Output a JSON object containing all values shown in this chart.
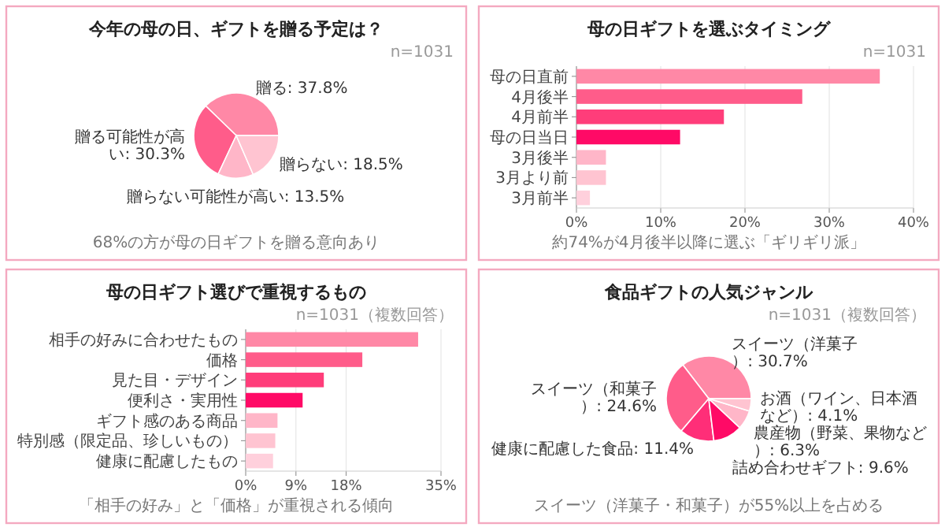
{
  "chart_data": [
    {
      "type": "pie",
      "title": "今年の母の日、ギフトを贈る予定は？",
      "categories": [
        "贈る",
        "贈る可能性が高い",
        "贈らない可能性が高い",
        "贈らない"
      ],
      "values": [
        37.8,
        30.3,
        13.5,
        18.5
      ],
      "value_labels": [
        "37.8%",
        "30.3%",
        "13.5%",
        "18.5%"
      ],
      "colors": [
        "#ff88a6",
        "#ff5c8a",
        "#ffb6c8",
        "#ffc4d1"
      ],
      "annotations": [
        "n=1031",
        "68%の方が母の日ギフトを贈る意向あり"
      ]
    },
    {
      "type": "bar",
      "orientation": "horizontal",
      "title": "母の日ギフトを選ぶタイミング",
      "categories": [
        "母の日直前",
        "4月後半",
        "4月前半",
        "母の日当日",
        "3月後半",
        "3月より前",
        "3月前半"
      ],
      "values": [
        36.0,
        26.8,
        17.5,
        12.3,
        3.5,
        3.5,
        1.6
      ],
      "colors": [
        "#ff88a6",
        "#ff5c8a",
        "#ff3d7a",
        "#ff0a66",
        "#ffb6c8",
        "#ffc4d1",
        "#ffd0dc"
      ],
      "xlim": [
        0,
        40
      ],
      "xticks": [
        {
          "value": 0,
          "label": "0%"
        },
        {
          "value": 10,
          "label": "10%"
        },
        {
          "value": 20,
          "label": "20%"
        },
        {
          "value": 30,
          "label": "30%"
        },
        {
          "value": 40,
          "label": "40%"
        }
      ],
      "grid": "x",
      "annotations": [
        "n=1031",
        "約74%が4月後半以降に選ぶ「ギリギリ派」"
      ]
    },
    {
      "type": "bar",
      "orientation": "horizontal",
      "title": "母の日ギフト選びで重視するもの",
      "categories": [
        "相手の好みに合わせたもの",
        "価格",
        "見た目・デザイン",
        "便利さ・実用性",
        "ギフト感のある商品",
        "特別感（限定品、珍しいもの）",
        "健康に配慮したもの"
      ],
      "values": [
        30.9,
        20.9,
        14.0,
        10.2,
        5.7,
        5.3,
        4.9
      ],
      "colors": [
        "#ff88a6",
        "#ff5c8a",
        "#ff3d7a",
        "#ff0a66",
        "#ffb6c8",
        "#ffc4d1",
        "#ffd0dc"
      ],
      "xlim": [
        0,
        35
      ],
      "xticks": [
        {
          "value": 0,
          "label": "0%"
        },
        {
          "value": 9,
          "label": "9%"
        },
        {
          "value": 18,
          "label": "18%"
        },
        {
          "value": 35,
          "label": "35%"
        }
      ],
      "grid": "x",
      "annotations": [
        "n=1031（複数回答）",
        "「相手の好み」と「価格」が重視される傾向"
      ]
    },
    {
      "type": "pie",
      "title": "食品ギフトの人気ジャンル",
      "categories": [
        "スイーツ（洋菓子）",
        "スイーツ（和菓子）",
        "健康に配慮した食品",
        "詰め合わせギフト",
        "農産物（野菜、果物など）",
        "お酒（ワイン、日本酒など）"
      ],
      "values": [
        30.7,
        24.6,
        11.4,
        9.6,
        6.3,
        4.1
      ],
      "value_labels": [
        "30.7%",
        "24.6%",
        "11.4%",
        "9.6%",
        "6.3%",
        "4.1%"
      ],
      "colors": [
        "#ff88a6",
        "#ff5c8a",
        "#ff2e78",
        "#ff0a66",
        "#ffb6c8",
        "#ffc4d1"
      ],
      "annotations": [
        "n=1031（複数回答）",
        "スイーツ（洋菓子・和菓子）が55%以上を占める"
      ]
    }
  ]
}
